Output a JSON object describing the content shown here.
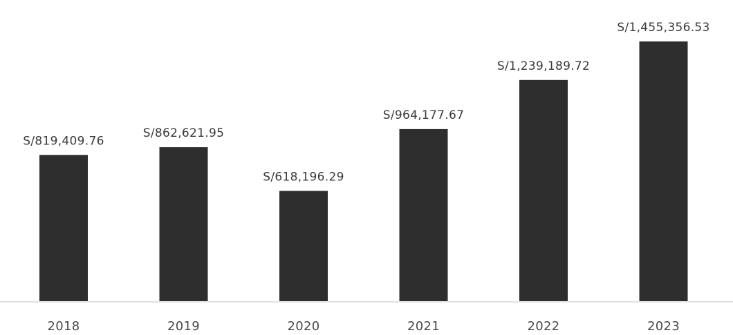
{
  "chart_data": {
    "type": "bar",
    "categories": [
      "2018",
      "2019",
      "2020",
      "2021",
      "2022",
      "2023"
    ],
    "values": [
      819409.76,
      862621.95,
      618196.29,
      964177.67,
      1239189.72,
      1455356.53
    ],
    "data_labels": [
      "S/819,409.76",
      "S/862,621.95",
      "S/618,196.29",
      "S/964,177.67",
      "S/1,239,189.72",
      "S/1,455,356.53"
    ],
    "ylim": [
      0,
      1455356.53
    ],
    "grid": false,
    "legend": "none",
    "colors": {
      "bar": "#2e2e2e",
      "baseline": "#d9d9d9",
      "text": "#3a3a3a"
    }
  }
}
